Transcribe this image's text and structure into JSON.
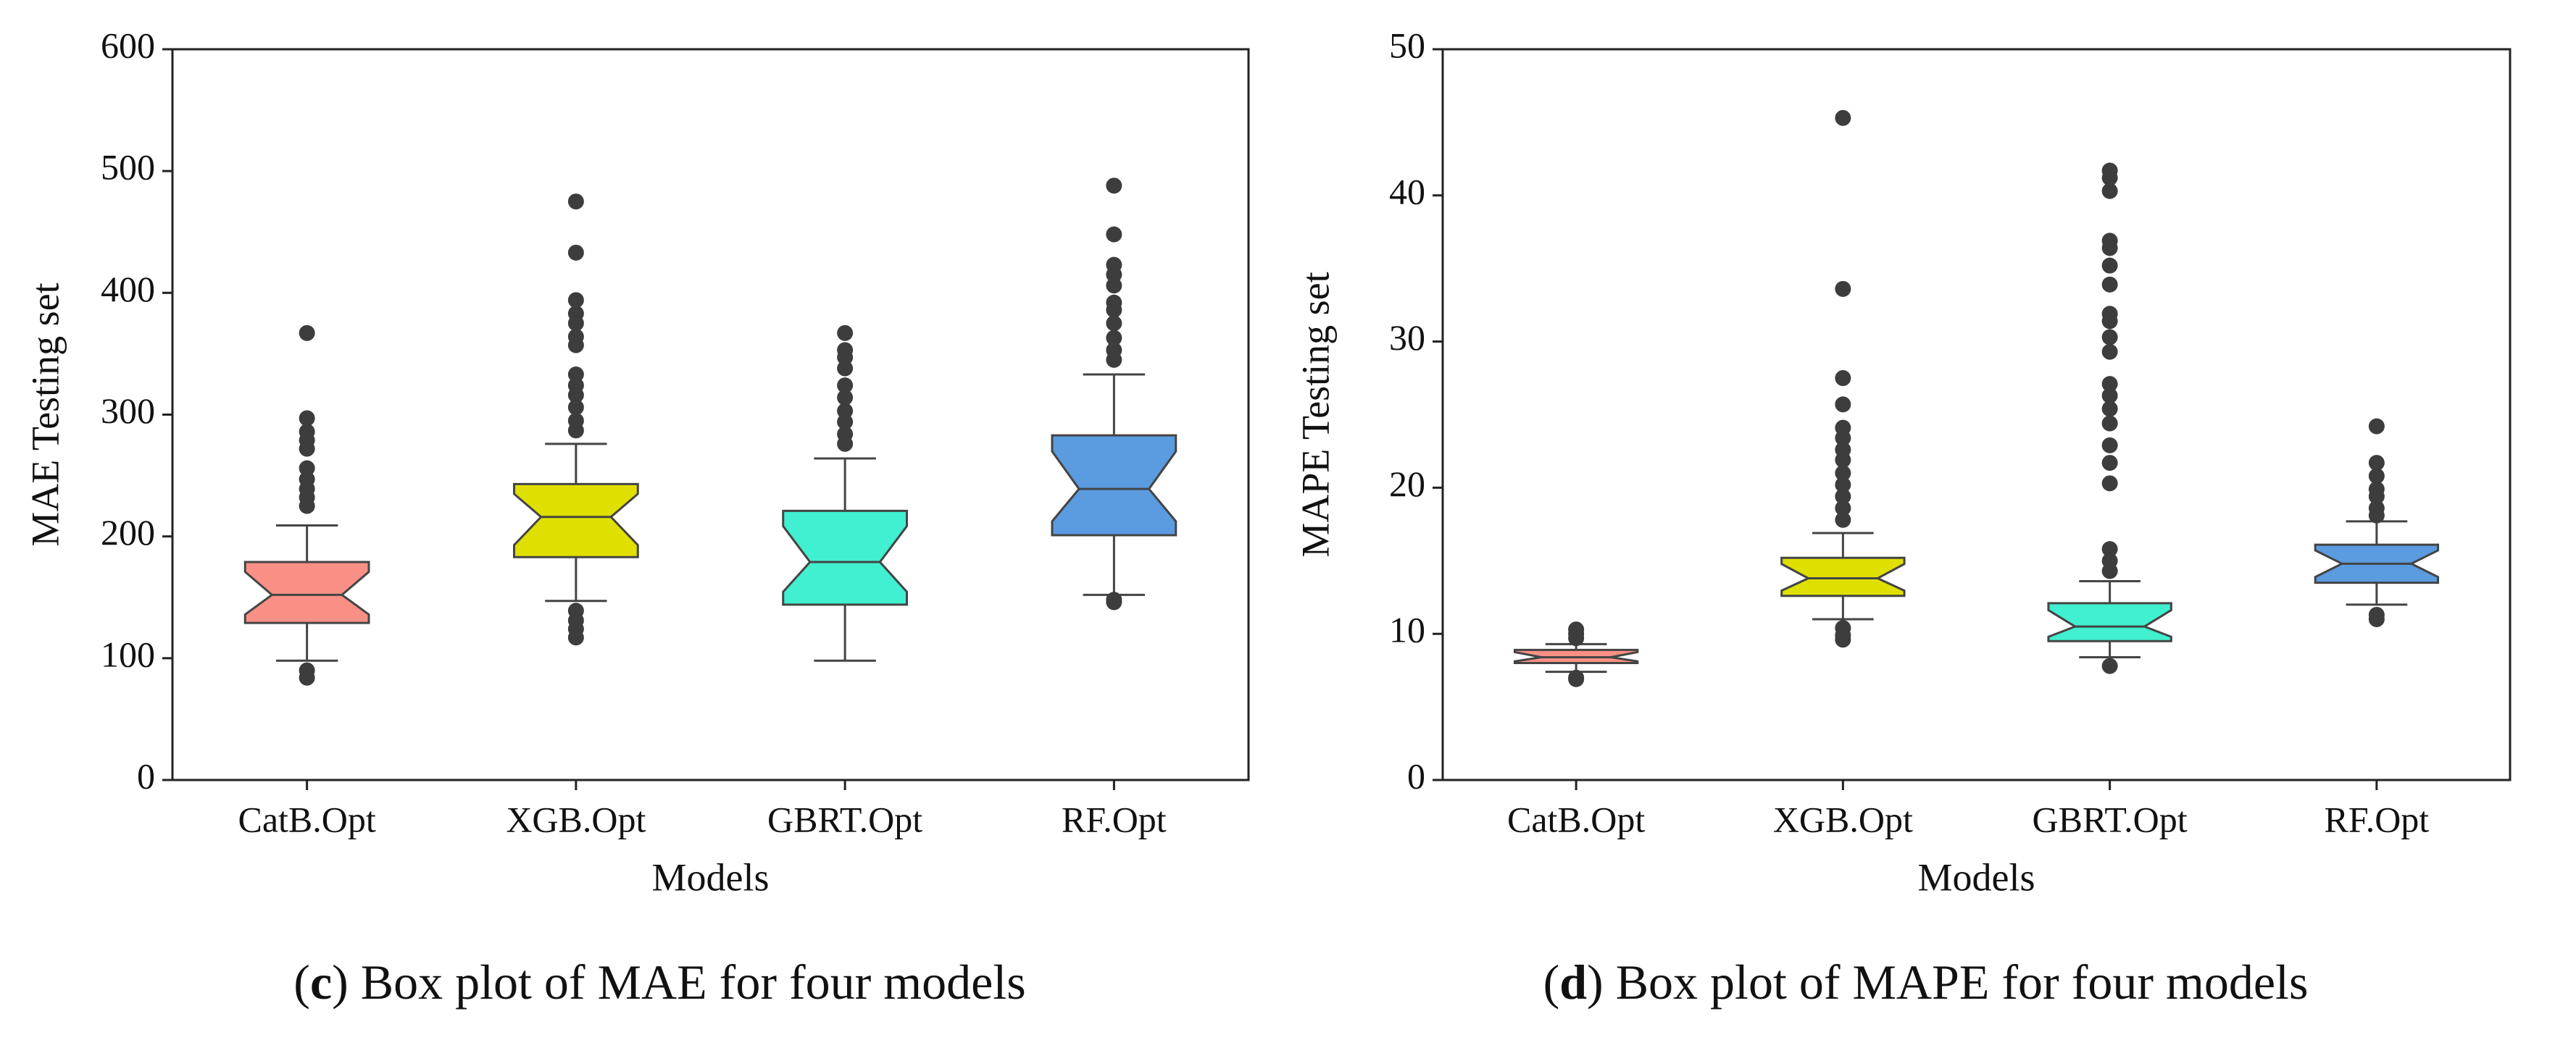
{
  "chart_data": [
    {
      "type": "box",
      "ylabel": "MAE Testing set",
      "xlabel": "Models",
      "caption": [
        "(",
        "c",
        ") Box plot of MAE for four models"
      ],
      "categories": [
        "CatB.Opt",
        "XGB.Opt",
        "GBRT.Opt",
        "RF.Opt"
      ],
      "ylim": [
        0,
        600
      ],
      "yticks": [
        0,
        100,
        200,
        300,
        400,
        500,
        600
      ],
      "boxes": [
        {
          "color": "#fa9085",
          "whislo": 98,
          "q1": 129,
          "med": 152,
          "q3": 179,
          "whishi": 209,
          "fliers": [
            367,
            297,
            286,
            279,
            272,
            256,
            247,
            239,
            232,
            225,
            90,
            84
          ]
        },
        {
          "color": "#e0e000",
          "whislo": 147,
          "q1": 183,
          "med": 216,
          "q3": 243,
          "whishi": 276,
          "fliers": [
            475,
            433,
            394,
            383,
            375,
            364,
            357,
            333,
            324,
            316,
            306,
            295,
            287,
            139,
            131,
            124,
            117
          ]
        },
        {
          "color": "#40f0d0",
          "whislo": 98,
          "q1": 144,
          "med": 179,
          "q3": 221,
          "whishi": 264,
          "fliers": [
            367,
            353,
            347,
            338,
            324,
            314,
            303,
            294,
            284,
            276
          ]
        },
        {
          "color": "#5b9be0",
          "whislo": 152,
          "q1": 201,
          "med": 239,
          "q3": 283,
          "whishi": 333,
          "fliers": [
            488,
            448,
            423,
            415,
            406,
            392,
            386,
            375,
            363,
            353,
            345,
            148,
            146
          ]
        }
      ]
    },
    {
      "type": "box",
      "ylabel": "MAPE Testing set",
      "xlabel": "Models",
      "caption": [
        "(",
        "d",
        ") Box plot of MAPE for four models"
      ],
      "categories": [
        "CatB.Opt",
        "XGB.Opt",
        "GBRT.Opt",
        "RF.Opt"
      ],
      "ylim": [
        0,
        50
      ],
      "yticks": [
        0,
        10,
        20,
        30,
        40,
        50
      ],
      "boxes": [
        {
          "color": "#fa9085",
          "whislo": 7.4,
          "q1": 8.0,
          "med": 8.4,
          "q3": 8.9,
          "whishi": 9.3,
          "fliers": [
            10.3,
            10.0,
            9.7,
            7.0,
            6.9
          ]
        },
        {
          "color": "#e0e000",
          "whislo": 11.0,
          "q1": 12.6,
          "med": 13.8,
          "q3": 15.2,
          "whishi": 16.9,
          "fliers": [
            45.3,
            33.6,
            27.5,
            25.7,
            24.1,
            23.4,
            22.6,
            21.9,
            21.0,
            20.2,
            19.4,
            18.6,
            17.8,
            10.4,
            9.9,
            9.6
          ]
        },
        {
          "color": "#40f0d0",
          "whislo": 8.4,
          "q1": 9.5,
          "med": 10.5,
          "q3": 12.1,
          "whishi": 13.6,
          "fliers": [
            41.7,
            41.2,
            40.3,
            36.9,
            36.4,
            35.2,
            33.9,
            31.9,
            31.4,
            30.3,
            29.3,
            27.1,
            26.3,
            25.4,
            24.4,
            22.9,
            21.7,
            20.3,
            15.8,
            15.0,
            14.3,
            7.8
          ]
        },
        {
          "color": "#5b9be0",
          "whislo": 12.0,
          "q1": 13.5,
          "med": 14.8,
          "q3": 16.1,
          "whishi": 17.7,
          "fliers": [
            24.2,
            21.7,
            20.8,
            19.9,
            19.4,
            18.6,
            18.1,
            11.3,
            11.0
          ]
        }
      ]
    }
  ]
}
